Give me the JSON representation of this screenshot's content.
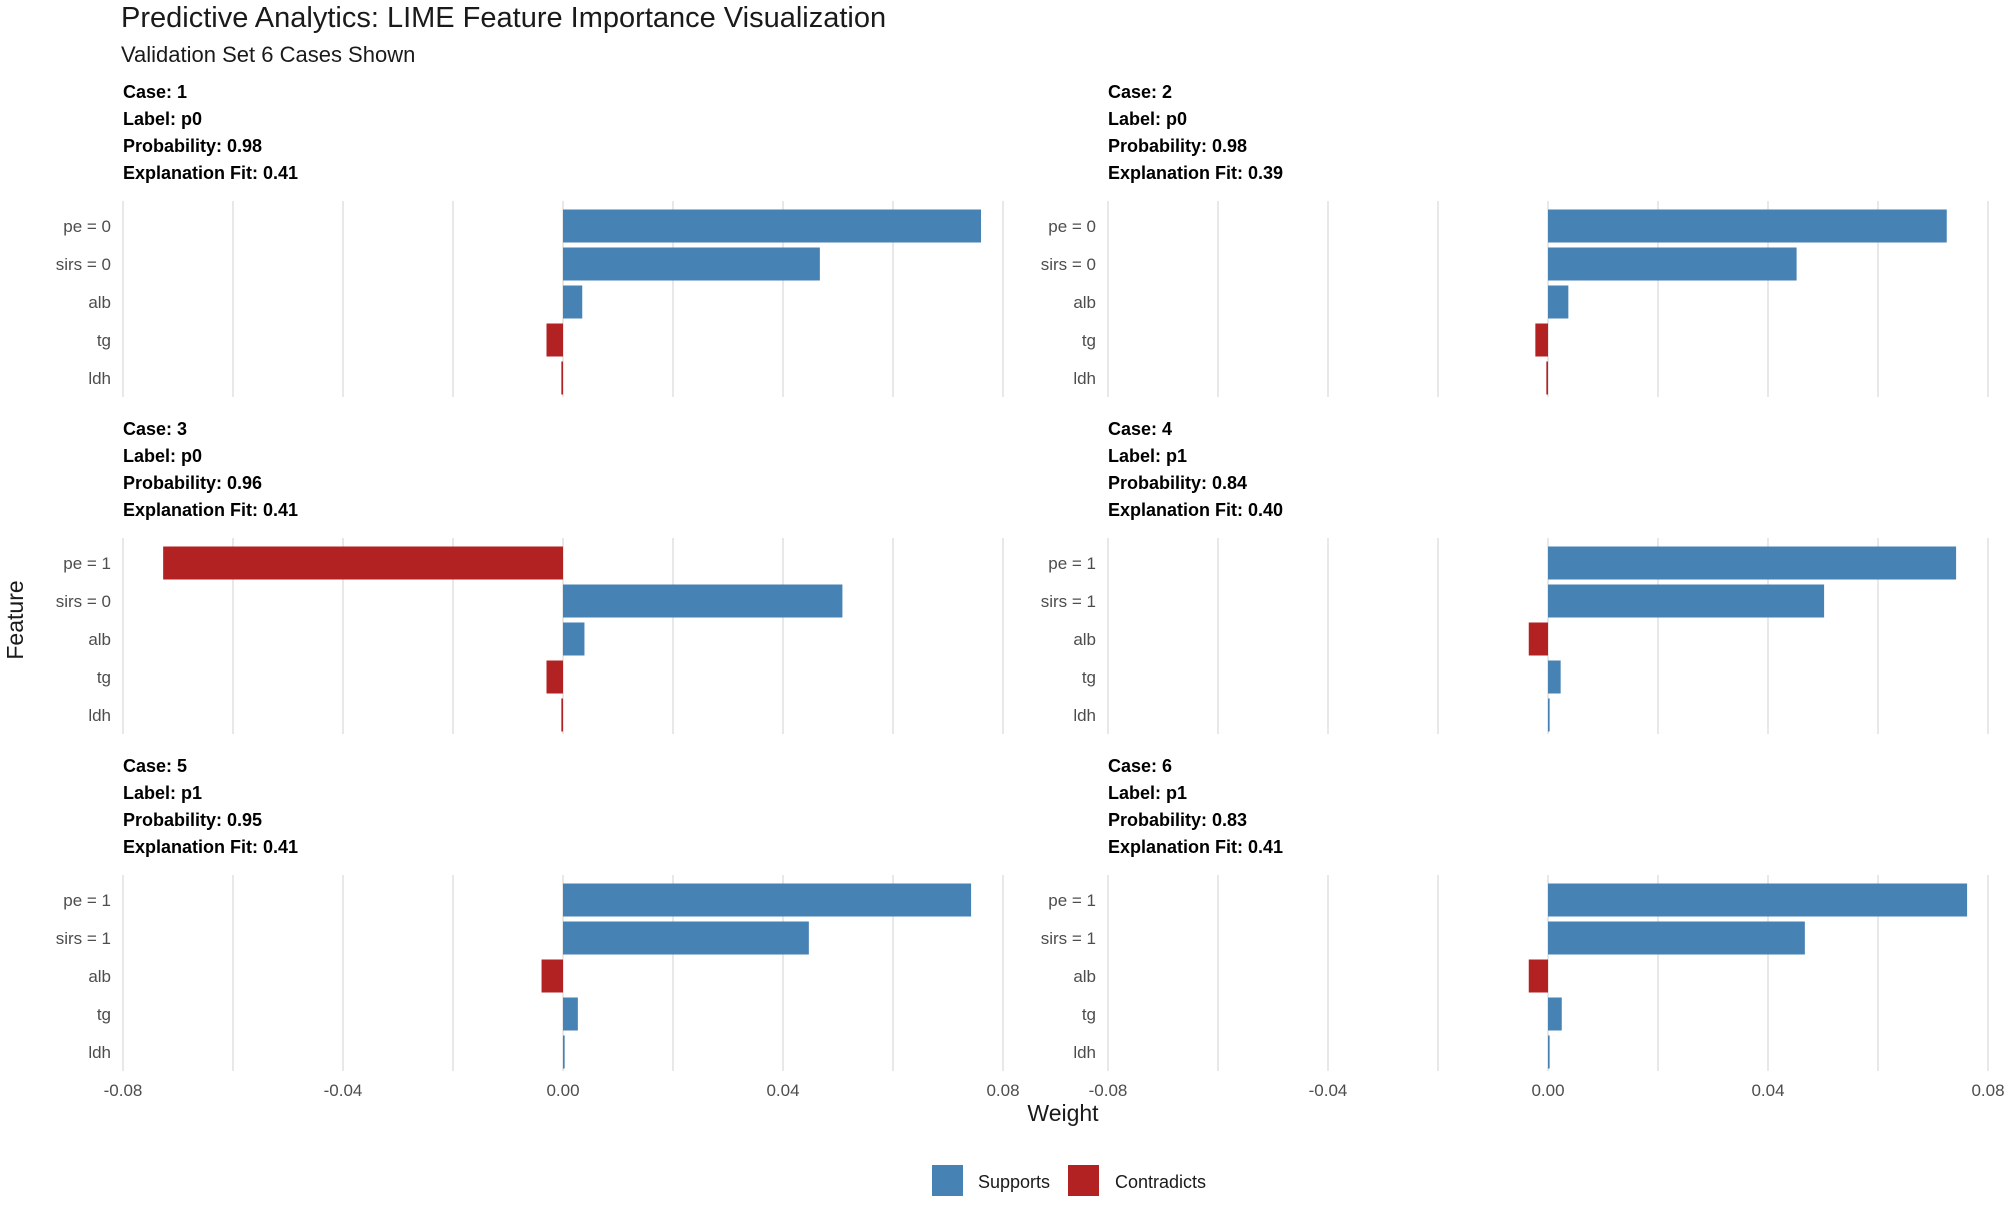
{
  "chart_data": {
    "type": "bar",
    "orientation": "horizontal",
    "title": "Predictive Analytics: LIME Feature Importance Visualization",
    "subtitle": "Validation Set 6 Cases Shown",
    "xlabel": "Weight",
    "ylabel": "Feature",
    "xlim": [
      -0.08,
      0.08
    ],
    "xticks": [
      -0.08,
      -0.04,
      0.0,
      0.04,
      0.08
    ],
    "xtick_labels": [
      "-0.08",
      "-0.04",
      "0.00",
      "0.04",
      "0.08"
    ],
    "colors": {
      "Supports": "#4682b4",
      "Contradicts": "#b22222"
    },
    "legend": {
      "position": "bottom",
      "entries": [
        "Supports",
        "Contradicts"
      ]
    },
    "facets": [
      {
        "case_label": "Case: 1",
        "label_label": "Label: p0",
        "prob_label": "Probability: 0.98",
        "fit_label": "Explanation Fit: 0.41",
        "features": [
          {
            "name": "pe = 0",
            "weight": 0.076
          },
          {
            "name": "sirs = 0",
            "weight": 0.0467
          },
          {
            "name": "alb",
            "weight": 0.0035
          },
          {
            "name": "tg",
            "weight": -0.003
          },
          {
            "name": "ldh",
            "weight": -0.0003
          }
        ]
      },
      {
        "case_label": "Case: 2",
        "label_label": "Label: p0",
        "prob_label": "Probability: 0.98",
        "fit_label": "Explanation Fit: 0.39",
        "features": [
          {
            "name": "pe = 0",
            "weight": 0.0725
          },
          {
            "name": "sirs = 0",
            "weight": 0.0452
          },
          {
            "name": "alb",
            "weight": 0.0037
          },
          {
            "name": "tg",
            "weight": -0.0023
          },
          {
            "name": "ldh",
            "weight": -0.0003
          }
        ]
      },
      {
        "case_label": "Case: 3",
        "label_label": "Label: p0",
        "prob_label": "Probability: 0.96",
        "fit_label": "Explanation Fit: 0.41",
        "features": [
          {
            "name": "pe = 1",
            "weight": -0.0727
          },
          {
            "name": "sirs = 0",
            "weight": 0.0508
          },
          {
            "name": "alb",
            "weight": 0.0039
          },
          {
            "name": "tg",
            "weight": -0.003
          },
          {
            "name": "ldh",
            "weight": -0.0003
          }
        ]
      },
      {
        "case_label": "Case: 4",
        "label_label": "Label: p1",
        "prob_label": "Probability: 0.84",
        "fit_label": "Explanation Fit: 0.40",
        "features": [
          {
            "name": "pe = 1",
            "weight": 0.0742
          },
          {
            "name": "sirs = 1",
            "weight": 0.0502
          },
          {
            "name": "alb",
            "weight": -0.0035
          },
          {
            "name": "tg",
            "weight": 0.0023
          },
          {
            "name": "ldh",
            "weight": 0.0003
          }
        ]
      },
      {
        "case_label": "Case: 5",
        "label_label": "Label: p1",
        "prob_label": "Probability: 0.95",
        "fit_label": "Explanation Fit: 0.41",
        "features": [
          {
            "name": "pe = 1",
            "weight": 0.0742
          },
          {
            "name": "sirs = 1",
            "weight": 0.0447
          },
          {
            "name": "alb",
            "weight": -0.0039
          },
          {
            "name": "tg",
            "weight": 0.0027
          },
          {
            "name": "ldh",
            "weight": 0.0003
          }
        ]
      },
      {
        "case_label": "Case: 6",
        "label_label": "Label: p1",
        "prob_label": "Probability: 0.83",
        "fit_label": "Explanation Fit: 0.41",
        "features": [
          {
            "name": "pe = 1",
            "weight": 0.0762
          },
          {
            "name": "sirs = 1",
            "weight": 0.0467
          },
          {
            "name": "alb",
            "weight": -0.0035
          },
          {
            "name": "tg",
            "weight": 0.0025
          },
          {
            "name": "ldh",
            "weight": 0.0003
          }
        ]
      }
    ]
  }
}
